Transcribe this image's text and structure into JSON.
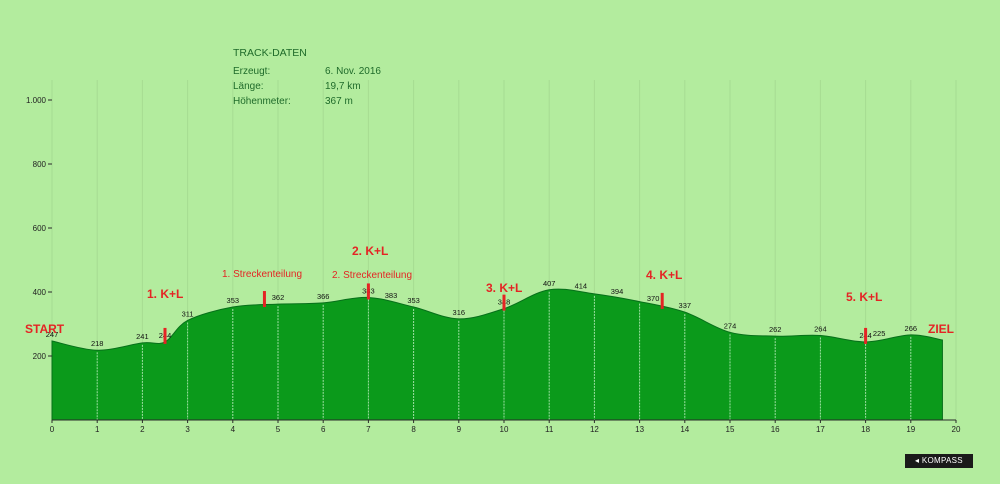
{
  "info": {
    "title": "TRACK-DATEN",
    "rows": [
      {
        "label": "Erzeugt:",
        "value": "6. Nov. 2016"
      },
      {
        "label": "Länge:",
        "value": "19,7 km"
      },
      {
        "label": "Höhenmeter:",
        "value": "367 m"
      }
    ]
  },
  "labels": {
    "start": "START",
    "ziel": "ZIEL",
    "kl1": "1. K+L",
    "kl2": "2. K+L",
    "kl3": "3. K+L",
    "kl4": "4. K+L",
    "kl5": "5. K+L",
    "split1": "1. Streckenteilung",
    "split2": "2. Streckenteilung"
  },
  "brand": "KOMPASS",
  "colors": {
    "background": "#b3ec9e",
    "fill": "#0b9a1b",
    "marker": "#e42424",
    "text_info": "#1f6b2a"
  },
  "chart_data": {
    "type": "area",
    "xlabel": "",
    "ylabel": "",
    "xlim": [
      0,
      20
    ],
    "ylim": [
      0,
      1100
    ],
    "x_ticks": [
      0,
      1,
      2,
      3,
      4,
      5,
      6,
      7,
      8,
      9,
      10,
      11,
      12,
      13,
      14,
      15,
      16,
      17,
      18,
      19,
      20
    ],
    "y_ticks": [
      200,
      400,
      600,
      800,
      1000
    ],
    "y_tick_labels": [
      "200",
      "400",
      "600",
      "800",
      "1.000"
    ],
    "x": [
      0,
      1,
      2,
      2.5,
      3,
      4,
      5,
      6,
      7,
      8,
      9,
      10,
      11,
      12,
      13,
      14,
      15,
      16,
      17,
      18,
      19,
      19.7
    ],
    "elevation": [
      247,
      218,
      241,
      244,
      311,
      353,
      362,
      366,
      383,
      353,
      316,
      348,
      407,
      394,
      370,
      337,
      274,
      262,
      264,
      244,
      266,
      250
    ],
    "point_labels": [
      {
        "km": 0,
        "value": "247"
      },
      {
        "km": 1,
        "value": "218"
      },
      {
        "km": 2,
        "value": "241"
      },
      {
        "km": 2.5,
        "value": "244"
      },
      {
        "km": 3,
        "value": "311"
      },
      {
        "km": 4,
        "value": "353"
      },
      {
        "km": 5,
        "value": "362"
      },
      {
        "km": 6,
        "value": "366"
      },
      {
        "km": 7,
        "value": "383"
      },
      {
        "km": 7.5,
        "value": "383"
      },
      {
        "km": 8,
        "value": "353"
      },
      {
        "km": 9,
        "value": "316"
      },
      {
        "km": 10,
        "value": "348"
      },
      {
        "km": 11,
        "value": "407"
      },
      {
        "km": 11.7,
        "value": "414"
      },
      {
        "km": 12.5,
        "value": "394"
      },
      {
        "km": 13.3,
        "value": "370"
      },
      {
        "km": 14,
        "value": "337"
      },
      {
        "km": 15,
        "value": "274"
      },
      {
        "km": 16,
        "value": "262"
      },
      {
        "km": 17,
        "value": "264"
      },
      {
        "km": 18,
        "value": "244"
      },
      {
        "km": 18.3,
        "value": "225"
      },
      {
        "km": 19,
        "value": "266"
      }
    ],
    "markers_km": [
      2.5,
      4.7,
      7,
      10,
      13.5,
      18
    ]
  }
}
